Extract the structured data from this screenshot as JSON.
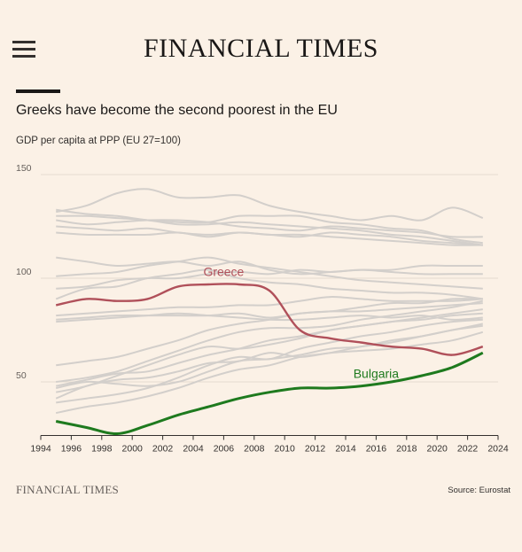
{
  "masthead": "FINANCIAL TIMES",
  "icons": {
    "menu": "hamburger-menu-icon"
  },
  "headline": "Greeks have become the second poorest in the EU",
  "footer": {
    "logo_text": "FINANCIAL TIMES",
    "source": "Source: Eurostat"
  },
  "colors": {
    "greece": "#b0505a",
    "bulgaria": "#1e7a1e",
    "others": "#d3cfcb",
    "background": "#fbf1e6"
  },
  "chart_data": {
    "type": "line",
    "title": "",
    "ylabel": "GDP per capita at PPP (EU 27=100)",
    "xlabel": "",
    "xlim": [
      1994,
      2024
    ],
    "ylim": [
      25,
      150
    ],
    "x_ticks": [
      "1994",
      "1996",
      "1998",
      "2000",
      "2002",
      "2004",
      "2006",
      "2008",
      "2010",
      "2012",
      "2014",
      "2016",
      "2018",
      "2020",
      "2022",
      "2024"
    ],
    "y_ticks": [
      "50",
      "100",
      "150"
    ],
    "grid": "horizontal",
    "x": [
      1995,
      1997,
      1999,
      2001,
      2003,
      2005,
      2007,
      2009,
      2011,
      2013,
      2015,
      2017,
      2019,
      2021,
      2023
    ],
    "highlighted": [
      {
        "name": "Greece",
        "values": [
          87,
          90,
          89,
          90,
          96,
          97,
          97,
          94,
          75,
          71,
          69,
          67,
          66,
          63,
          67
        ]
      },
      {
        "name": "Bulgaria",
        "values": [
          31,
          28,
          25,
          29,
          34,
          38,
          42,
          45,
          47,
          47,
          48,
          50,
          53,
          57,
          64
        ]
      }
    ],
    "other_series": [
      [
        132,
        135,
        141,
        143,
        139,
        139,
        140,
        135,
        132,
        130,
        128,
        130,
        128,
        134,
        129
      ],
      [
        133,
        131,
        130,
        128,
        127,
        127,
        130,
        130,
        130,
        127,
        126,
        124,
        123,
        119,
        117
      ],
      [
        128,
        126,
        127,
        128,
        128,
        127,
        125,
        124,
        123,
        125,
        124,
        123,
        122,
        120,
        120
      ],
      [
        130,
        130,
        129,
        128,
        126,
        126,
        127,
        126,
        125,
        124,
        123,
        121,
        120,
        118,
        116
      ],
      [
        125,
        124,
        123,
        124,
        122,
        121,
        122,
        121,
        120,
        122,
        121,
        120,
        118,
        117,
        116
      ],
      [
        122,
        121,
        121,
        121,
        122,
        120,
        122,
        121,
        121,
        120,
        119,
        118,
        117,
        116,
        116
      ],
      [
        110,
        108,
        106,
        107,
        108,
        106,
        108,
        104,
        102,
        103,
        104,
        104,
        106,
        106,
        106
      ],
      [
        95,
        96,
        99,
        100,
        100,
        102,
        103,
        102,
        104,
        103,
        104,
        103,
        102,
        102,
        102
      ],
      [
        101,
        102,
        103,
        106,
        108,
        110,
        107,
        105,
        103,
        101,
        99,
        98,
        97,
        96,
        95
      ],
      [
        90,
        95,
        96,
        100,
        102,
        104,
        100,
        98,
        97,
        95,
        94,
        93,
        93,
        92,
        90
      ],
      [
        82,
        83,
        84,
        85,
        86,
        86,
        87,
        87,
        89,
        91,
        90,
        89,
        89,
        89,
        90
      ],
      [
        80,
        81,
        82,
        82,
        82,
        82,
        83,
        81,
        83,
        84,
        84,
        85,
        86,
        87,
        88
      ],
      [
        79,
        80,
        81,
        82,
        83,
        82,
        81,
        80,
        80,
        81,
        82,
        81,
        82,
        80,
        81
      ],
      [
        58,
        60,
        62,
        66,
        70,
        75,
        78,
        80,
        83,
        84,
        86,
        88,
        88,
        90,
        90
      ],
      [
        50,
        52,
        55,
        60,
        65,
        70,
        74,
        76,
        76,
        77,
        80,
        82,
        84,
        86,
        89
      ],
      [
        48,
        51,
        54,
        55,
        59,
        63,
        66,
        70,
        72,
        75,
        77,
        79,
        81,
        83,
        85
      ],
      [
        45,
        48,
        53,
        58,
        63,
        67,
        66,
        68,
        71,
        75,
        77,
        79,
        80,
        82,
        83
      ],
      [
        40,
        42,
        44,
        47,
        52,
        58,
        62,
        61,
        66,
        69,
        72,
        74,
        77,
        79,
        80
      ],
      [
        47,
        50,
        49,
        48,
        50,
        55,
        60,
        61,
        63,
        66,
        67,
        70,
        72,
        75,
        77
      ],
      [
        35,
        38,
        40,
        43,
        47,
        52,
        56,
        58,
        62,
        64,
        67,
        69,
        72,
        75,
        78
      ],
      [
        42,
        48,
        51,
        52,
        55,
        59,
        60,
        64,
        62,
        64,
        65,
        66,
        68,
        70,
        74
      ]
    ],
    "annotations": [
      {
        "text": "Greece",
        "series": "Greece",
        "x": 2006,
        "y": 101
      },
      {
        "text": "Bulgaria",
        "series": "Bulgaria",
        "x": 2016,
        "y": 52
      }
    ]
  }
}
